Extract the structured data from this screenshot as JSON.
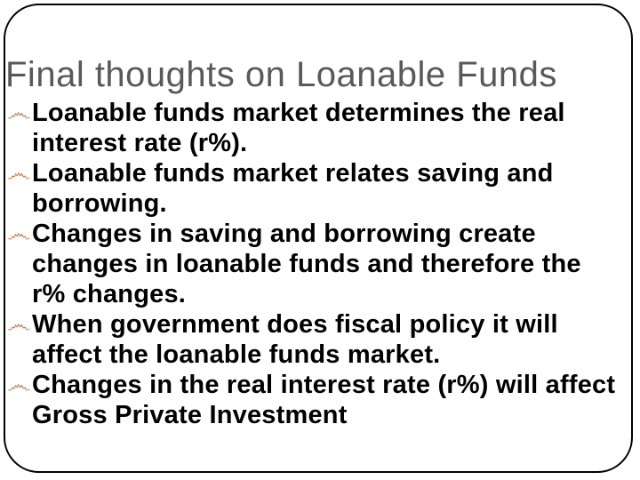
{
  "slide": {
    "title": "Final thoughts on Loanable Funds",
    "title_color": "#595959",
    "title_fontsize": 40,
    "background_color": "#ffffff",
    "border_color": "#000000",
    "border_radius": 40,
    "bullet_glyph": "෴",
    "bullet_color": "#c28157",
    "body_fontsize": 29,
    "body_lineheight": 34,
    "body_color": "#000000",
    "body_fontweight": 700,
    "bullets": [
      "Loanable funds market determines the real interest rate (r%).",
      "Loanable funds market relates saving and borrowing.",
      "Changes in saving and borrowing create changes in loanable funds and therefore the r% changes.",
      "When government does fiscal policy it will affect the loanable funds market.",
      "Changes in the real interest rate (r%) will affect Gross Private Investment"
    ]
  }
}
